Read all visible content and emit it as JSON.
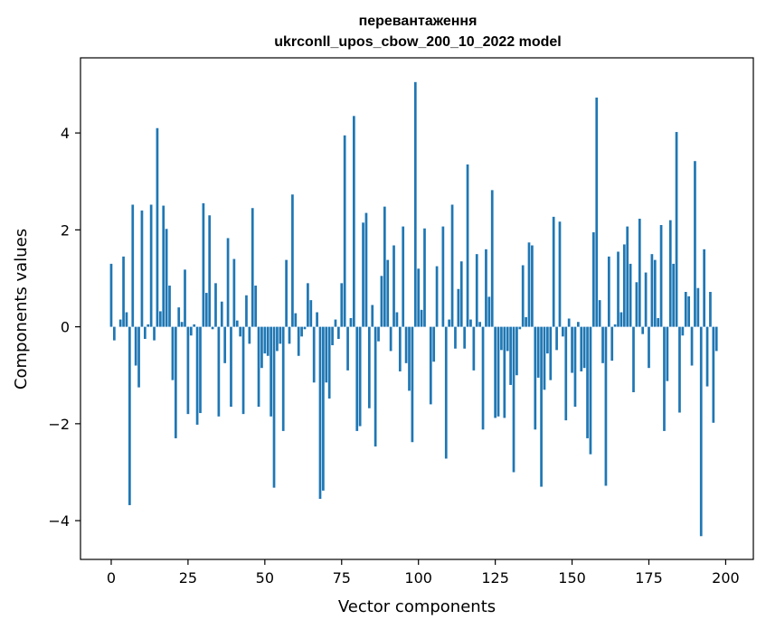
{
  "chart_data": {
    "type": "bar",
    "title_line1": "перевантаження",
    "title_line2": "ukrconll_upos_cbow_200_10_2022 model",
    "xlabel": "Vector components",
    "ylabel": "Components values",
    "xlim": [
      -10,
      209
    ],
    "ylim": [
      -4.8,
      5.55
    ],
    "xticks": [
      0,
      25,
      50,
      75,
      100,
      125,
      150,
      175,
      200
    ],
    "yticks": [
      -4,
      -2,
      0,
      2,
      4
    ],
    "ytick_labels": [
      "−4",
      "−2",
      "0",
      "2",
      "4"
    ],
    "bar_color": "#1f77b4",
    "grid": false,
    "values": [
      1.3,
      -0.28,
      0.0,
      0.15,
      1.45,
      0.3,
      -3.68,
      2.52,
      -0.8,
      -1.25,
      2.4,
      -0.25,
      0.05,
      2.52,
      -0.28,
      4.1,
      0.32,
      2.5,
      2.02,
      0.85,
      -1.1,
      -2.3,
      0.4,
      0.1,
      1.18,
      -1.8,
      -0.18,
      0.05,
      -2.02,
      -1.78,
      2.55,
      0.7,
      2.3,
      -0.05,
      0.9,
      -1.85,
      0.52,
      -0.75,
      1.83,
      -1.65,
      1.4,
      0.13,
      -0.2,
      -1.8,
      0.65,
      -0.35,
      2.45,
      0.85,
      -1.65,
      -0.85,
      -0.55,
      -0.6,
      -1.85,
      -3.32,
      -0.5,
      -0.35,
      -2.15,
      1.38,
      -0.35,
      2.73,
      0.28,
      -0.6,
      -0.2,
      -0.05,
      0.9,
      0.55,
      -1.15,
      0.3,
      -3.55,
      -3.38,
      -1.15,
      -1.48,
      -0.38,
      0.15,
      -0.25,
      0.9,
      3.95,
      -0.9,
      0.18,
      4.35,
      -2.15,
      -2.05,
      2.15,
      2.35,
      -1.68,
      0.45,
      -2.47,
      -0.3,
      1.05,
      2.48,
      1.38,
      -0.5,
      1.68,
      0.3,
      -0.92,
      2.07,
      -0.75,
      -1.32,
      -2.38,
      5.05,
      1.2,
      0.35,
      2.03,
      0.0,
      -1.6,
      -0.72,
      1.25,
      0.0,
      2.07,
      -2.72,
      0.15,
      2.52,
      -0.45,
      0.78,
      1.35,
      -0.45,
      3.35,
      0.15,
      -0.9,
      1.5,
      0.1,
      -2.12,
      1.6,
      0.62,
      2.82,
      -1.88,
      -1.85,
      -0.48,
      -1.88,
      -0.5,
      -1.2,
      -3.0,
      -1.0,
      -0.05,
      1.27,
      0.2,
      1.74,
      1.68,
      -2.12,
      -1.05,
      -3.3,
      -1.3,
      -0.55,
      -1.1,
      2.27,
      -0.48,
      2.17,
      -0.2,
      -1.93,
      0.17,
      -0.95,
      -1.65,
      0.1,
      -0.92,
      -0.85,
      -2.3,
      -2.63,
      1.95,
      4.73,
      0.55,
      -0.75,
      -3.28,
      1.45,
      -0.7,
      0.05,
      1.55,
      0.3,
      1.7,
      2.07,
      1.3,
      -1.35,
      0.92,
      2.23,
      -0.15,
      1.12,
      -0.85,
      1.5,
      1.38,
      0.18,
      2.1,
      -2.15,
      -1.12,
      2.2,
      1.3,
      4.02,
      -1.77,
      -0.18,
      0.72,
      0.63,
      -0.8,
      3.42,
      0.8,
      -4.32,
      1.6,
      -1.23,
      0.72,
      -1.98,
      -0.5
    ]
  }
}
